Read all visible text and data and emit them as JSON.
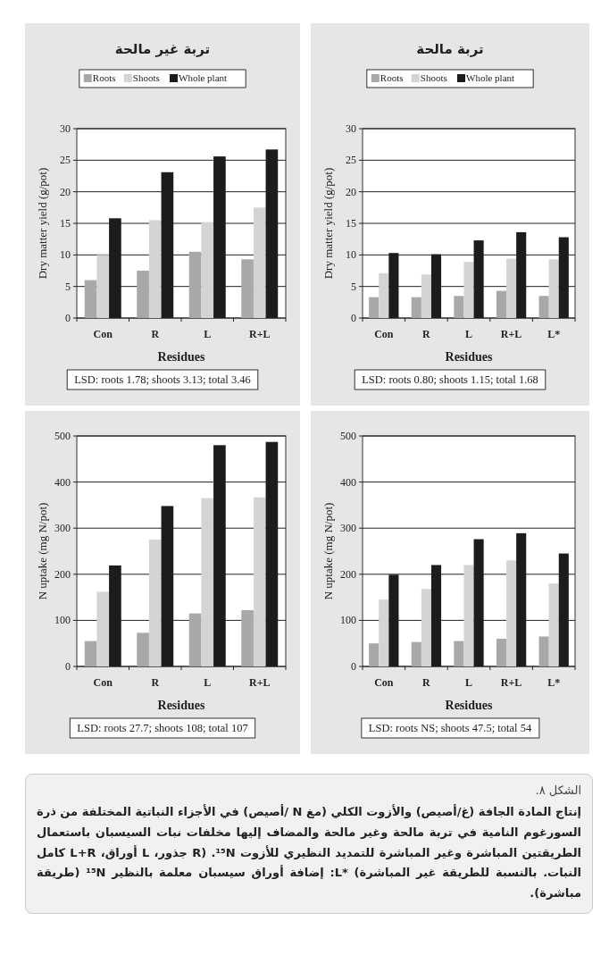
{
  "chart_data": [
    {
      "type": "bar",
      "title": "تربة غير مالحة",
      "xlabel": "Residues",
      "ylabel": "Dry matter yield (g/pot)",
      "categories": [
        "Con",
        "R",
        "L",
        "R+L"
      ],
      "ylim": [
        0,
        30
      ],
      "yticks": [
        0,
        5,
        10,
        15,
        20,
        25,
        30
      ],
      "grid": "y",
      "legend": "top",
      "series": [
        {
          "name": "Roots",
          "color": "#a8a8a8",
          "values": [
            6,
            7.5,
            10.5,
            9.3
          ]
        },
        {
          "name": "Shoots",
          "color": "#d4d4d4",
          "values": [
            10,
            15.5,
            15.2,
            17.5
          ]
        },
        {
          "name": "Whole plant",
          "color": "#1c1c1c",
          "values": [
            15.8,
            23.1,
            25.6,
            26.7
          ]
        }
      ],
      "annotations": [
        "LSD:  roots 1.78; shoots 3.13; total 3.46"
      ]
    },
    {
      "type": "bar",
      "title": "تربة مالحة",
      "xlabel": "Residues",
      "ylabel": "Dry matter yield (g/pot)",
      "categories": [
        "Con",
        "R",
        "L",
        "R+L",
        "L*"
      ],
      "ylim": [
        0,
        30
      ],
      "yticks": [
        0,
        5,
        10,
        15,
        20,
        25,
        30
      ],
      "grid": "y",
      "legend": "top",
      "series": [
        {
          "name": "Roots",
          "color": "#a8a8a8",
          "values": [
            3.3,
            3.3,
            3.5,
            4.3,
            3.5
          ]
        },
        {
          "name": "Shoots",
          "color": "#d4d4d4",
          "values": [
            7.1,
            6.9,
            8.9,
            9.4,
            9.3
          ]
        },
        {
          "name": "Whole plant",
          "color": "#1c1c1c",
          "values": [
            10.3,
            10.1,
            12.3,
            13.6,
            12.8
          ]
        }
      ],
      "annotations": [
        "LSD:  roots 0.80; shoots 1.15; total 1.68"
      ]
    },
    {
      "type": "bar",
      "xlabel": "Residues",
      "ylabel": "N uptake (mg N/pot)",
      "categories": [
        "Con",
        "R",
        "L",
        "R+L"
      ],
      "ylim": [
        0,
        500
      ],
      "yticks": [
        0,
        100,
        200,
        300,
        400,
        500
      ],
      "grid": "y",
      "series": [
        {
          "color": "#a8a8a8",
          "values": [
            55,
            73,
            115,
            122
          ]
        },
        {
          "color": "#d4d4d4",
          "values": [
            162,
            275,
            365,
            367
          ]
        },
        {
          "color": "#1c1c1c",
          "values": [
            219,
            348,
            480,
            487
          ]
        }
      ],
      "annotations": [
        "LSD:  roots 27.7; shoots 108; total 107"
      ]
    },
    {
      "type": "bar",
      "xlabel": "Residues",
      "ylabel": "N uptake (mg N/pot)",
      "categories": [
        "Con",
        "R",
        "L",
        "R+L",
        "L*"
      ],
      "ylim": [
        0,
        500
      ],
      "yticks": [
        0,
        100,
        200,
        300,
        400,
        500
      ],
      "grid": "y",
      "series": [
        {
          "color": "#a8a8a8",
          "values": [
            50,
            53,
            55,
            60,
            65
          ]
        },
        {
          "color": "#d4d4d4",
          "values": [
            145,
            168,
            220,
            230,
            180
          ]
        },
        {
          "color": "#1c1c1c",
          "values": [
            199,
            220,
            276,
            289,
            245
          ]
        }
      ],
      "annotations": [
        "LSD:  roots NS; shoots 47.5; total 54"
      ]
    },
    {
      "type": "other",
      "title": "الشكل ٨.",
      "annotations": [
        "إنتاج المادة الجافة (غ/أصيص) والأزوت الكلي (مغ N /أصيص) في الأجزاء النباتية المختلفة من ذرة السورغوم النامية في تربة مالحة وغير مالحة والمضاف إليها مخلفات نبات السيسبان باستعمال الطريقتين المباشرة وغير المباشرة للتمديد النظيري للأزوت ¹⁵N. (R جذور، L أوراق، L+R كامل النبات. بالنسبة للطريقة غير المباشرة) *L: إضافة أوراق سيسبان معلمة بالنظير ¹⁵N (طريقة مباشرة)."
      ]
    }
  ]
}
